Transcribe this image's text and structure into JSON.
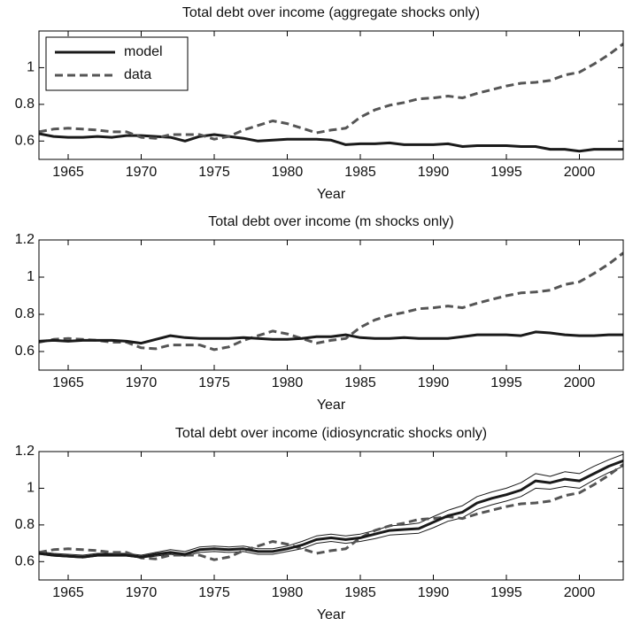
{
  "chart_data": [
    {
      "type": "line",
      "title": "Total debt over income (aggregate shocks only)",
      "xlabel": "Year",
      "x": [
        1963,
        1964,
        1965,
        1966,
        1967,
        1968,
        1969,
        1970,
        1971,
        1972,
        1973,
        1974,
        1975,
        1976,
        1977,
        1978,
        1979,
        1980,
        1981,
        1982,
        1983,
        1984,
        1985,
        1986,
        1987,
        1988,
        1989,
        1990,
        1991,
        1992,
        1993,
        1994,
        1995,
        1996,
        1997,
        1998,
        1999,
        2000,
        2001,
        2002,
        2003
      ],
      "xlim": [
        1963,
        2003
      ],
      "xticks": [
        1965,
        1970,
        1975,
        1980,
        1985,
        1990,
        1995,
        2000
      ],
      "ylim": [
        0.5,
        1.2
      ],
      "yticks": [
        0.6,
        0.8,
        1
      ],
      "legend": "upper left",
      "series": [
        {
          "name": "model",
          "color": "#1a1a1a",
          "style": "solid",
          "width": 3,
          "values": [
            0.64,
            0.625,
            0.62,
            0.62,
            0.625,
            0.62,
            0.63,
            0.63,
            0.625,
            0.62,
            0.6,
            0.625,
            0.635,
            0.625,
            0.615,
            0.6,
            0.605,
            0.61,
            0.61,
            0.61,
            0.605,
            0.58,
            0.585,
            0.585,
            0.59,
            0.58,
            0.58,
            0.58,
            0.585,
            0.57,
            0.575,
            0.575,
            0.575,
            0.57,
            0.57,
            0.555,
            0.555,
            0.545,
            0.555,
            0.555,
            0.555
          ]
        },
        {
          "name": "data",
          "color": "#555555",
          "style": "dashed",
          "width": 3,
          "values": [
            0.65,
            0.665,
            0.67,
            0.665,
            0.66,
            0.65,
            0.65,
            0.62,
            0.615,
            0.635,
            0.635,
            0.635,
            0.61,
            0.625,
            0.66,
            0.685,
            0.71,
            0.695,
            0.67,
            0.645,
            0.66,
            0.67,
            0.73,
            0.77,
            0.795,
            0.81,
            0.83,
            0.835,
            0.845,
            0.835,
            0.86,
            0.88,
            0.9,
            0.915,
            0.92,
            0.93,
            0.96,
            0.975,
            1.02,
            1.07,
            1.13
          ]
        }
      ]
    },
    {
      "type": "line",
      "title": "Total debt over income (m shocks only)",
      "xlabel": "Year",
      "x": [
        1963,
        1964,
        1965,
        1966,
        1967,
        1968,
        1969,
        1970,
        1971,
        1972,
        1973,
        1974,
        1975,
        1976,
        1977,
        1978,
        1979,
        1980,
        1981,
        1982,
        1983,
        1984,
        1985,
        1986,
        1987,
        1988,
        1989,
        1990,
        1991,
        1992,
        1993,
        1994,
        1995,
        1996,
        1997,
        1998,
        1999,
        2000,
        2001,
        2002,
        2003
      ],
      "xlim": [
        1963,
        2003
      ],
      "xticks": [
        1965,
        1970,
        1975,
        1980,
        1985,
        1990,
        1995,
        2000
      ],
      "ylim": [
        0.5,
        1.2
      ],
      "yticks": [
        0.6,
        0.8,
        1,
        1.2
      ],
      "series": [
        {
          "color": "#555555",
          "style": "dashed",
          "width": 3,
          "values": [
            0.65,
            0.665,
            0.67,
            0.665,
            0.66,
            0.65,
            0.65,
            0.62,
            0.615,
            0.635,
            0.635,
            0.635,
            0.61,
            0.625,
            0.66,
            0.685,
            0.71,
            0.695,
            0.67,
            0.645,
            0.66,
            0.67,
            0.73,
            0.77,
            0.795,
            0.81,
            0.83,
            0.835,
            0.845,
            0.835,
            0.86,
            0.88,
            0.9,
            0.915,
            0.92,
            0.93,
            0.96,
            0.975,
            1.02,
            1.07,
            1.13
          ]
        },
        {
          "color": "#1a1a1a",
          "style": "solid",
          "width": 3,
          "values": [
            0.655,
            0.66,
            0.655,
            0.66,
            0.66,
            0.66,
            0.655,
            0.645,
            0.665,
            0.685,
            0.675,
            0.67,
            0.67,
            0.67,
            0.675,
            0.67,
            0.665,
            0.665,
            0.67,
            0.68,
            0.68,
            0.69,
            0.675,
            0.67,
            0.67,
            0.675,
            0.67,
            0.67,
            0.67,
            0.68,
            0.69,
            0.69,
            0.69,
            0.685,
            0.705,
            0.7,
            0.69,
            0.685,
            0.685,
            0.69,
            0.69
          ]
        }
      ]
    },
    {
      "type": "line",
      "title": "Total debt over income (idiosyncratic shocks only)",
      "xlabel": "Year",
      "x": [
        1963,
        1964,
        1965,
        1966,
        1967,
        1968,
        1969,
        1970,
        1971,
        1972,
        1973,
        1974,
        1975,
        1976,
        1977,
        1978,
        1979,
        1980,
        1981,
        1982,
        1983,
        1984,
        1985,
        1986,
        1987,
        1988,
        1989,
        1990,
        1991,
        1992,
        1993,
        1994,
        1995,
        1996,
        1997,
        1998,
        1999,
        2000,
        2001,
        2002,
        2003
      ],
      "xlim": [
        1963,
        2003
      ],
      "xticks": [
        1965,
        1970,
        1975,
        1980,
        1985,
        1990,
        1995,
        2000
      ],
      "ylim": [
        0.5,
        1.2
      ],
      "yticks": [
        0.6,
        0.8,
        1,
        1.2
      ],
      "series": [
        {
          "color": "#1a1a1a",
          "style": "solid",
          "width": 1,
          "values": [
            0.655,
            0.645,
            0.64,
            0.635,
            0.645,
            0.645,
            0.645,
            0.635,
            0.65,
            0.665,
            0.655,
            0.68,
            0.685,
            0.68,
            0.685,
            0.67,
            0.67,
            0.685,
            0.71,
            0.74,
            0.75,
            0.74,
            0.75,
            0.77,
            0.795,
            0.8,
            0.81,
            0.845,
            0.88,
            0.905,
            0.955,
            0.98,
            1.0,
            1.03,
            1.08,
            1.065,
            1.09,
            1.08,
            1.12,
            1.155,
            1.185
          ]
        },
        {
          "color": "#1a1a1a",
          "style": "solid",
          "width": 1,
          "values": [
            0.64,
            0.63,
            0.625,
            0.62,
            0.63,
            0.63,
            0.63,
            0.62,
            0.63,
            0.64,
            0.63,
            0.65,
            0.655,
            0.65,
            0.655,
            0.64,
            0.64,
            0.655,
            0.67,
            0.7,
            0.71,
            0.7,
            0.71,
            0.725,
            0.745,
            0.75,
            0.755,
            0.785,
            0.82,
            0.84,
            0.885,
            0.91,
            0.93,
            0.955,
            1.0,
            0.995,
            1.01,
            1.0,
            1.045,
            1.085,
            1.12
          ]
        },
        {
          "color": "#555555",
          "style": "dashed",
          "width": 3,
          "values": [
            0.65,
            0.665,
            0.67,
            0.665,
            0.66,
            0.65,
            0.65,
            0.62,
            0.615,
            0.635,
            0.635,
            0.635,
            0.61,
            0.625,
            0.66,
            0.685,
            0.71,
            0.695,
            0.67,
            0.645,
            0.66,
            0.67,
            0.73,
            0.77,
            0.795,
            0.81,
            0.83,
            0.835,
            0.845,
            0.835,
            0.86,
            0.88,
            0.9,
            0.915,
            0.92,
            0.93,
            0.96,
            0.975,
            1.02,
            1.07,
            1.13
          ]
        },
        {
          "color": "#1a1a1a",
          "style": "solid",
          "width": 3,
          "values": [
            0.645,
            0.635,
            0.63,
            0.625,
            0.635,
            0.635,
            0.635,
            0.625,
            0.64,
            0.65,
            0.64,
            0.665,
            0.67,
            0.665,
            0.67,
            0.655,
            0.655,
            0.67,
            0.69,
            0.72,
            0.73,
            0.72,
            0.73,
            0.75,
            0.77,
            0.775,
            0.78,
            0.815,
            0.85,
            0.87,
            0.92,
            0.945,
            0.965,
            0.99,
            1.04,
            1.03,
            1.05,
            1.04,
            1.08,
            1.12,
            1.15
          ]
        }
      ]
    }
  ]
}
